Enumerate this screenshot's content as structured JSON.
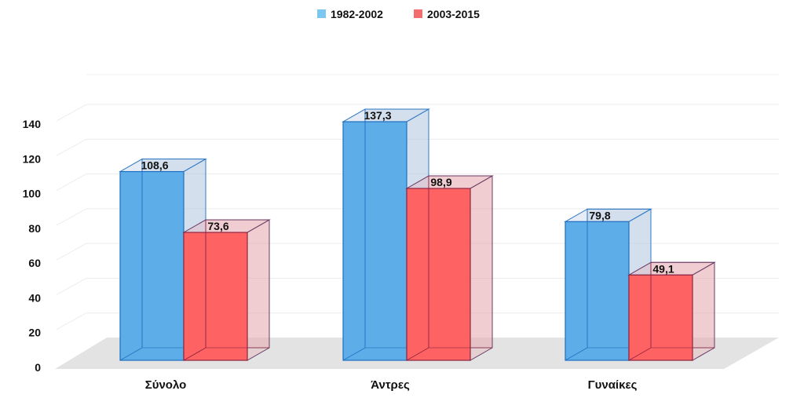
{
  "chart_data": {
    "type": "bar",
    "categories": [
      "Σύνολο",
      "Άντρες",
      "Γυναίκες"
    ],
    "series": [
      {
        "name": "1982-2002",
        "values": [
          108.6,
          137.3,
          79.8
        ],
        "labels": [
          "108,6",
          "137,3",
          "79,8"
        ],
        "color": "#5DADE8",
        "legend_color": "#7CC7F2"
      },
      {
        "name": "2003-2015",
        "values": [
          73.6,
          98.9,
          49.1
        ],
        "labels": [
          "73,6",
          "98,9",
          "49,1"
        ],
        "color": "#FF6262",
        "legend_color": "#F26D6D"
      }
    ],
    "yticks": [
      "0",
      "20",
      "40",
      "60",
      "80",
      "100",
      "120",
      "140"
    ],
    "ylim": [
      0,
      140
    ],
    "grid": true,
    "legend_position": "top-center",
    "style": "3d-column"
  }
}
